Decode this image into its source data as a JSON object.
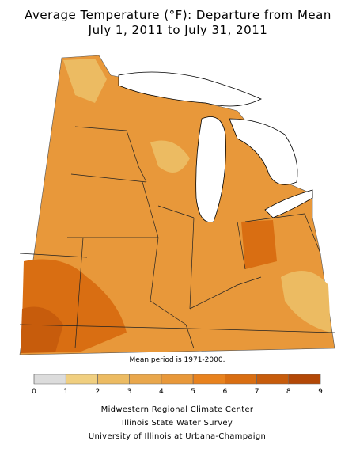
{
  "header": {
    "title_lines": [
      "Average Temperature (°F): Departure from Mean",
      "July 1, 2011 to July 31, 2011"
    ]
  },
  "note": "Mean period is 1971-2000.",
  "legend": {
    "bins": [
      0,
      1,
      2,
      3,
      4,
      5,
      6,
      7,
      8,
      9
    ],
    "colors": [
      "#dcdcdc",
      "#f0cf80",
      "#ecbb62",
      "#e9a74c",
      "#e8983a",
      "#e8821e",
      "#d96e12",
      "#c75c0c",
      "#b34807"
    ]
  },
  "credits": [
    "Midwestern Regional Climate Center",
    "Illinois State Water Survey",
    "University of Illinois at Urbana-Champaign"
  ]
}
